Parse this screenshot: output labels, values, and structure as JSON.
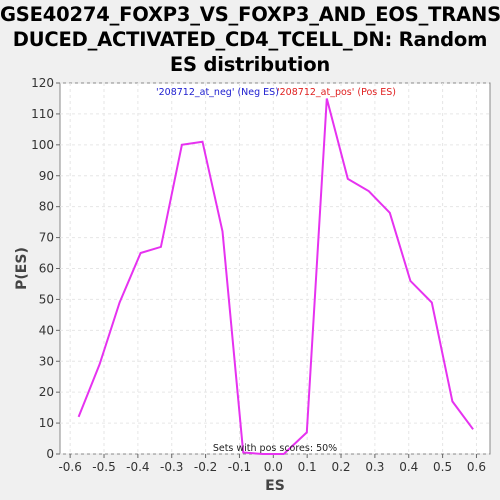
{
  "title_lines": [
    "GSE40274_FOXP3_VS_FOXP3_AND_EOS_TRANS",
    "DUCED_ACTIVATED_CD4_TCELL_DN: Random",
    "ES distribution"
  ],
  "colors": {
    "plot_bg": "#ffffff",
    "page_bg": "#f0f0f0",
    "line": "#e632f0",
    "grid": "#e6e6e6",
    "neg_legend": "#2020d0",
    "pos_legend": "#e02020"
  },
  "chart_data": {
    "type": "line",
    "xlabel": "ES",
    "ylabel": "P(ES)",
    "xlim": [
      -0.63,
      0.64
    ],
    "ylim": [
      0,
      120
    ],
    "x_ticks": [
      -0.6,
      -0.5,
      -0.4,
      -0.3,
      -0.2,
      -0.1,
      0.0,
      0.1,
      0.2,
      0.3,
      0.4,
      0.5,
      0.6
    ],
    "x_tick_labels": [
      "-0.6",
      "-0.5",
      "-0.4",
      "-0.3",
      "-0.2",
      "-0.1",
      "0.0",
      "0.1",
      "0.2",
      "0.3",
      "0.4",
      "0.5",
      "0.6"
    ],
    "y_ticks": [
      0,
      10,
      20,
      30,
      40,
      50,
      60,
      70,
      80,
      90,
      100,
      110,
      120
    ],
    "y_tick_labels": [
      "0",
      "10",
      "20",
      "30",
      "40",
      "50",
      "60",
      "70",
      "80",
      "90",
      "100",
      "110",
      "120"
    ],
    "grid": true,
    "series": [
      {
        "x": [
          -0.575,
          -0.513,
          -0.454,
          -0.392,
          -0.332,
          -0.27,
          -0.209,
          -0.15,
          -0.089,
          -0.031,
          0.031,
          0.099,
          0.158,
          0.22,
          0.282,
          0.344,
          0.405,
          0.468,
          0.529,
          0.59
        ],
        "y": [
          12,
          29,
          49,
          65,
          67,
          100,
          101,
          72,
          0.5,
          0,
          0,
          7,
          115,
          89,
          85,
          78,
          56,
          49,
          17,
          8
        ]
      }
    ],
    "legend": {
      "neg": "'208712_at_neg' (Neg ES)",
      "pos": "'208712_at_pos' (Pos ES)"
    },
    "annotation": "Sets with pos scores: 50%"
  }
}
